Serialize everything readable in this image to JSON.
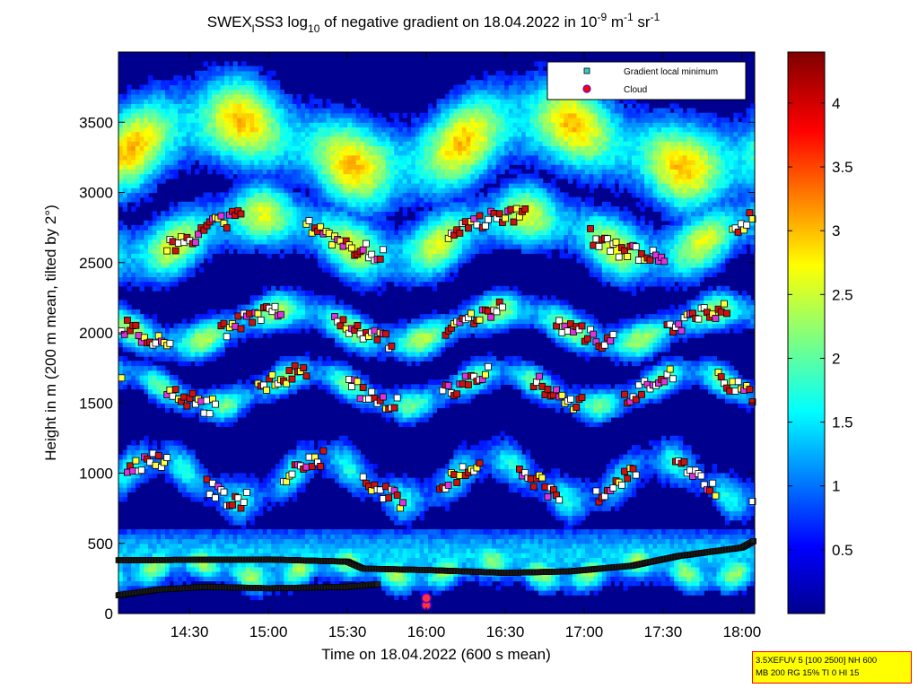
{
  "figure": {
    "title_parts": {
      "p1": "SWEX",
      "p1_sub": "l",
      "p2": "SS3 log",
      "p2_sub": "10",
      "p3": " of negative gradient on 18.04.2022 in 10",
      "p3_sup": "-9",
      "p4": " m",
      "p4_sup": "-1",
      "p5": " sr",
      "p5_sup": "-1"
    },
    "info_box": {
      "line1": "3.5XEFUV 5 [100 2500] NH 600",
      "line2": "MB 200 RG 15% TI 0 HI 15"
    }
  },
  "chart_data": {
    "type": "heatmap",
    "title": "SWEXlSS3 log10 of negative gradient on 18.04.2022 in 10^-9 m^-1 sr^-1",
    "xlabel": "Time on 18.04.2022 (600 s mean)",
    "ylabel": "Height in m (200 m mean, tilted by 2°)",
    "x_ticks": [
      "14:30",
      "15:00",
      "15:30",
      "16:00",
      "16:30",
      "17:00",
      "17:30",
      "18:00"
    ],
    "x_tick_hours": [
      14.5,
      15.0,
      15.5,
      16.0,
      16.5,
      17.0,
      17.5,
      18.0
    ],
    "xlim_hours": [
      14.05,
      18.08
    ],
    "y_ticks": [
      "0",
      "500",
      "1000",
      "1500",
      "2000",
      "2500",
      "3000",
      "3500"
    ],
    "y_tick_values": [
      0,
      500,
      1000,
      1500,
      2000,
      2500,
      3000,
      3500
    ],
    "ylim": [
      0,
      4000
    ],
    "colorbar": {
      "ticks": [
        "0.5",
        "1",
        "1.5",
        "2",
        "2.5",
        "3",
        "3.5",
        "4"
      ],
      "tick_values": [
        0.5,
        1,
        1.5,
        2,
        2.5,
        3,
        3.5,
        4
      ],
      "range": [
        0,
        4.4
      ],
      "colormap": "jet"
    },
    "legend": {
      "placement": "top-right",
      "entries": [
        {
          "label": "Gradient local minimum",
          "marker": "square",
          "color": "#33cccc"
        },
        {
          "label": "Cloud",
          "marker": "circle",
          "color": "#ff0000"
        }
      ]
    },
    "layers": [
      {
        "base_height": 3350,
        "amplitude": 180,
        "band_width": 420,
        "intensity": 3.0
      },
      {
        "base_height": 2700,
        "amplitude": 150,
        "band_width": 300,
        "intensity": 2.6
      },
      {
        "base_height": 2050,
        "amplitude": 120,
        "band_width": 180,
        "intensity": 2.4
      },
      {
        "base_height": 1600,
        "amplitude": 120,
        "band_width": 160,
        "intensity": 2.1
      },
      {
        "base_height": 950,
        "amplitude": 150,
        "band_width": 220,
        "intensity": 1.7
      },
      {
        "base_height": 320,
        "amplitude": 60,
        "band_width": 170,
        "intensity": 2.3
      }
    ],
    "boundary_lines": [
      {
        "name": "upper",
        "points": [
          [
            14.05,
            380
          ],
          [
            15.0,
            385
          ],
          [
            15.5,
            370
          ],
          [
            15.6,
            320
          ],
          [
            16.0,
            310
          ],
          [
            16.5,
            290
          ],
          [
            16.9,
            300
          ],
          [
            17.3,
            340
          ],
          [
            17.6,
            410
          ],
          [
            18.0,
            470
          ],
          [
            18.08,
            520
          ]
        ]
      },
      {
        "name": "lower",
        "points": [
          [
            14.05,
            130
          ],
          [
            14.3,
            170
          ],
          [
            14.6,
            190
          ],
          [
            15.0,
            180
          ],
          [
            15.5,
            190
          ],
          [
            15.7,
            210
          ]
        ]
      }
    ],
    "clouds": [
      [
        16.0,
        60
      ],
      [
        16.0,
        110
      ]
    ],
    "marker_colors": {
      "white": "#ffffff",
      "yellow": "#ffff44",
      "red": "#cc1111",
      "magenta": "#dd33dd",
      "cyan": "#33cccc"
    }
  }
}
